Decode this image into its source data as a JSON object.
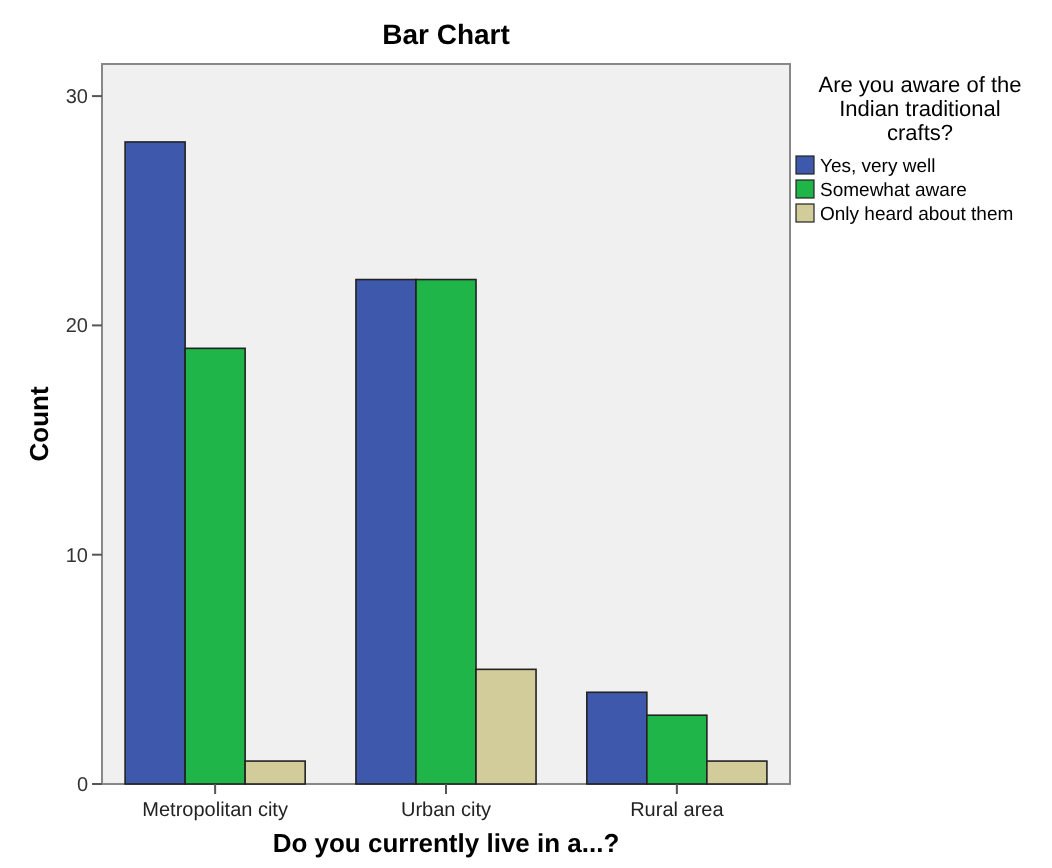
{
  "chart_data": {
    "type": "bar",
    "title": "Bar Chart",
    "xlabel": "Do you currently live in a...?",
    "ylabel": "Count",
    "legend_title": "Are you aware of the Indian traditional crafts?",
    "categories": [
      "Metropolitan city",
      "Urban city",
      "Rural area"
    ],
    "series": [
      {
        "name": "Yes, very well",
        "color": "#3e58ac",
        "values": [
          28,
          22,
          4
        ]
      },
      {
        "name": "Somewhat aware",
        "color": "#1fb549",
        "values": [
          19,
          22,
          3
        ]
      },
      {
        "name": "Only heard about them",
        "color": "#d2cc9a",
        "values": [
          1,
          5,
          1
        ]
      }
    ],
    "ylim": [
      0,
      31.4
    ],
    "yticks": [
      0,
      10,
      20,
      30
    ],
    "grid": false,
    "legend": "right"
  }
}
